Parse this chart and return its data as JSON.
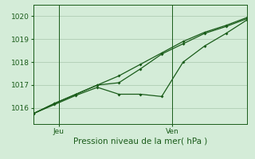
{
  "title": "",
  "xlabel": "Pression niveau de la mer( hPa )",
  "ylabel": "",
  "bg_color": "#d4ecd8",
  "grid_color": "#b0ccb4",
  "line_color": "#1a5c1a",
  "ylim": [
    1015.3,
    1020.5
  ],
  "xlim": [
    0,
    10
  ],
  "yticks": [
    1016,
    1017,
    1018,
    1019,
    1020
  ],
  "xtick_positions": [
    1.2,
    6.5
  ],
  "xtick_labels": [
    "Jeu",
    "Ven"
  ],
  "vline_x": [
    1.2,
    6.5
  ],
  "x": [
    0,
    1,
    2,
    3,
    4,
    5,
    6,
    7,
    8,
    9,
    10
  ],
  "line_upper_y": [
    1015.75,
    1016.2,
    1016.6,
    1017.0,
    1017.4,
    1017.9,
    1018.4,
    1018.9,
    1019.3,
    1019.6,
    1019.95
  ],
  "line_mid_y": [
    1015.75,
    1016.2,
    1016.6,
    1017.0,
    1017.1,
    1017.7,
    1018.35,
    1018.8,
    1019.25,
    1019.55,
    1019.9
  ],
  "line_lower_y": [
    1015.75,
    1016.15,
    1016.55,
    1016.9,
    1016.6,
    1016.6,
    1016.5,
    1018.0,
    1018.7,
    1019.25,
    1019.85
  ]
}
